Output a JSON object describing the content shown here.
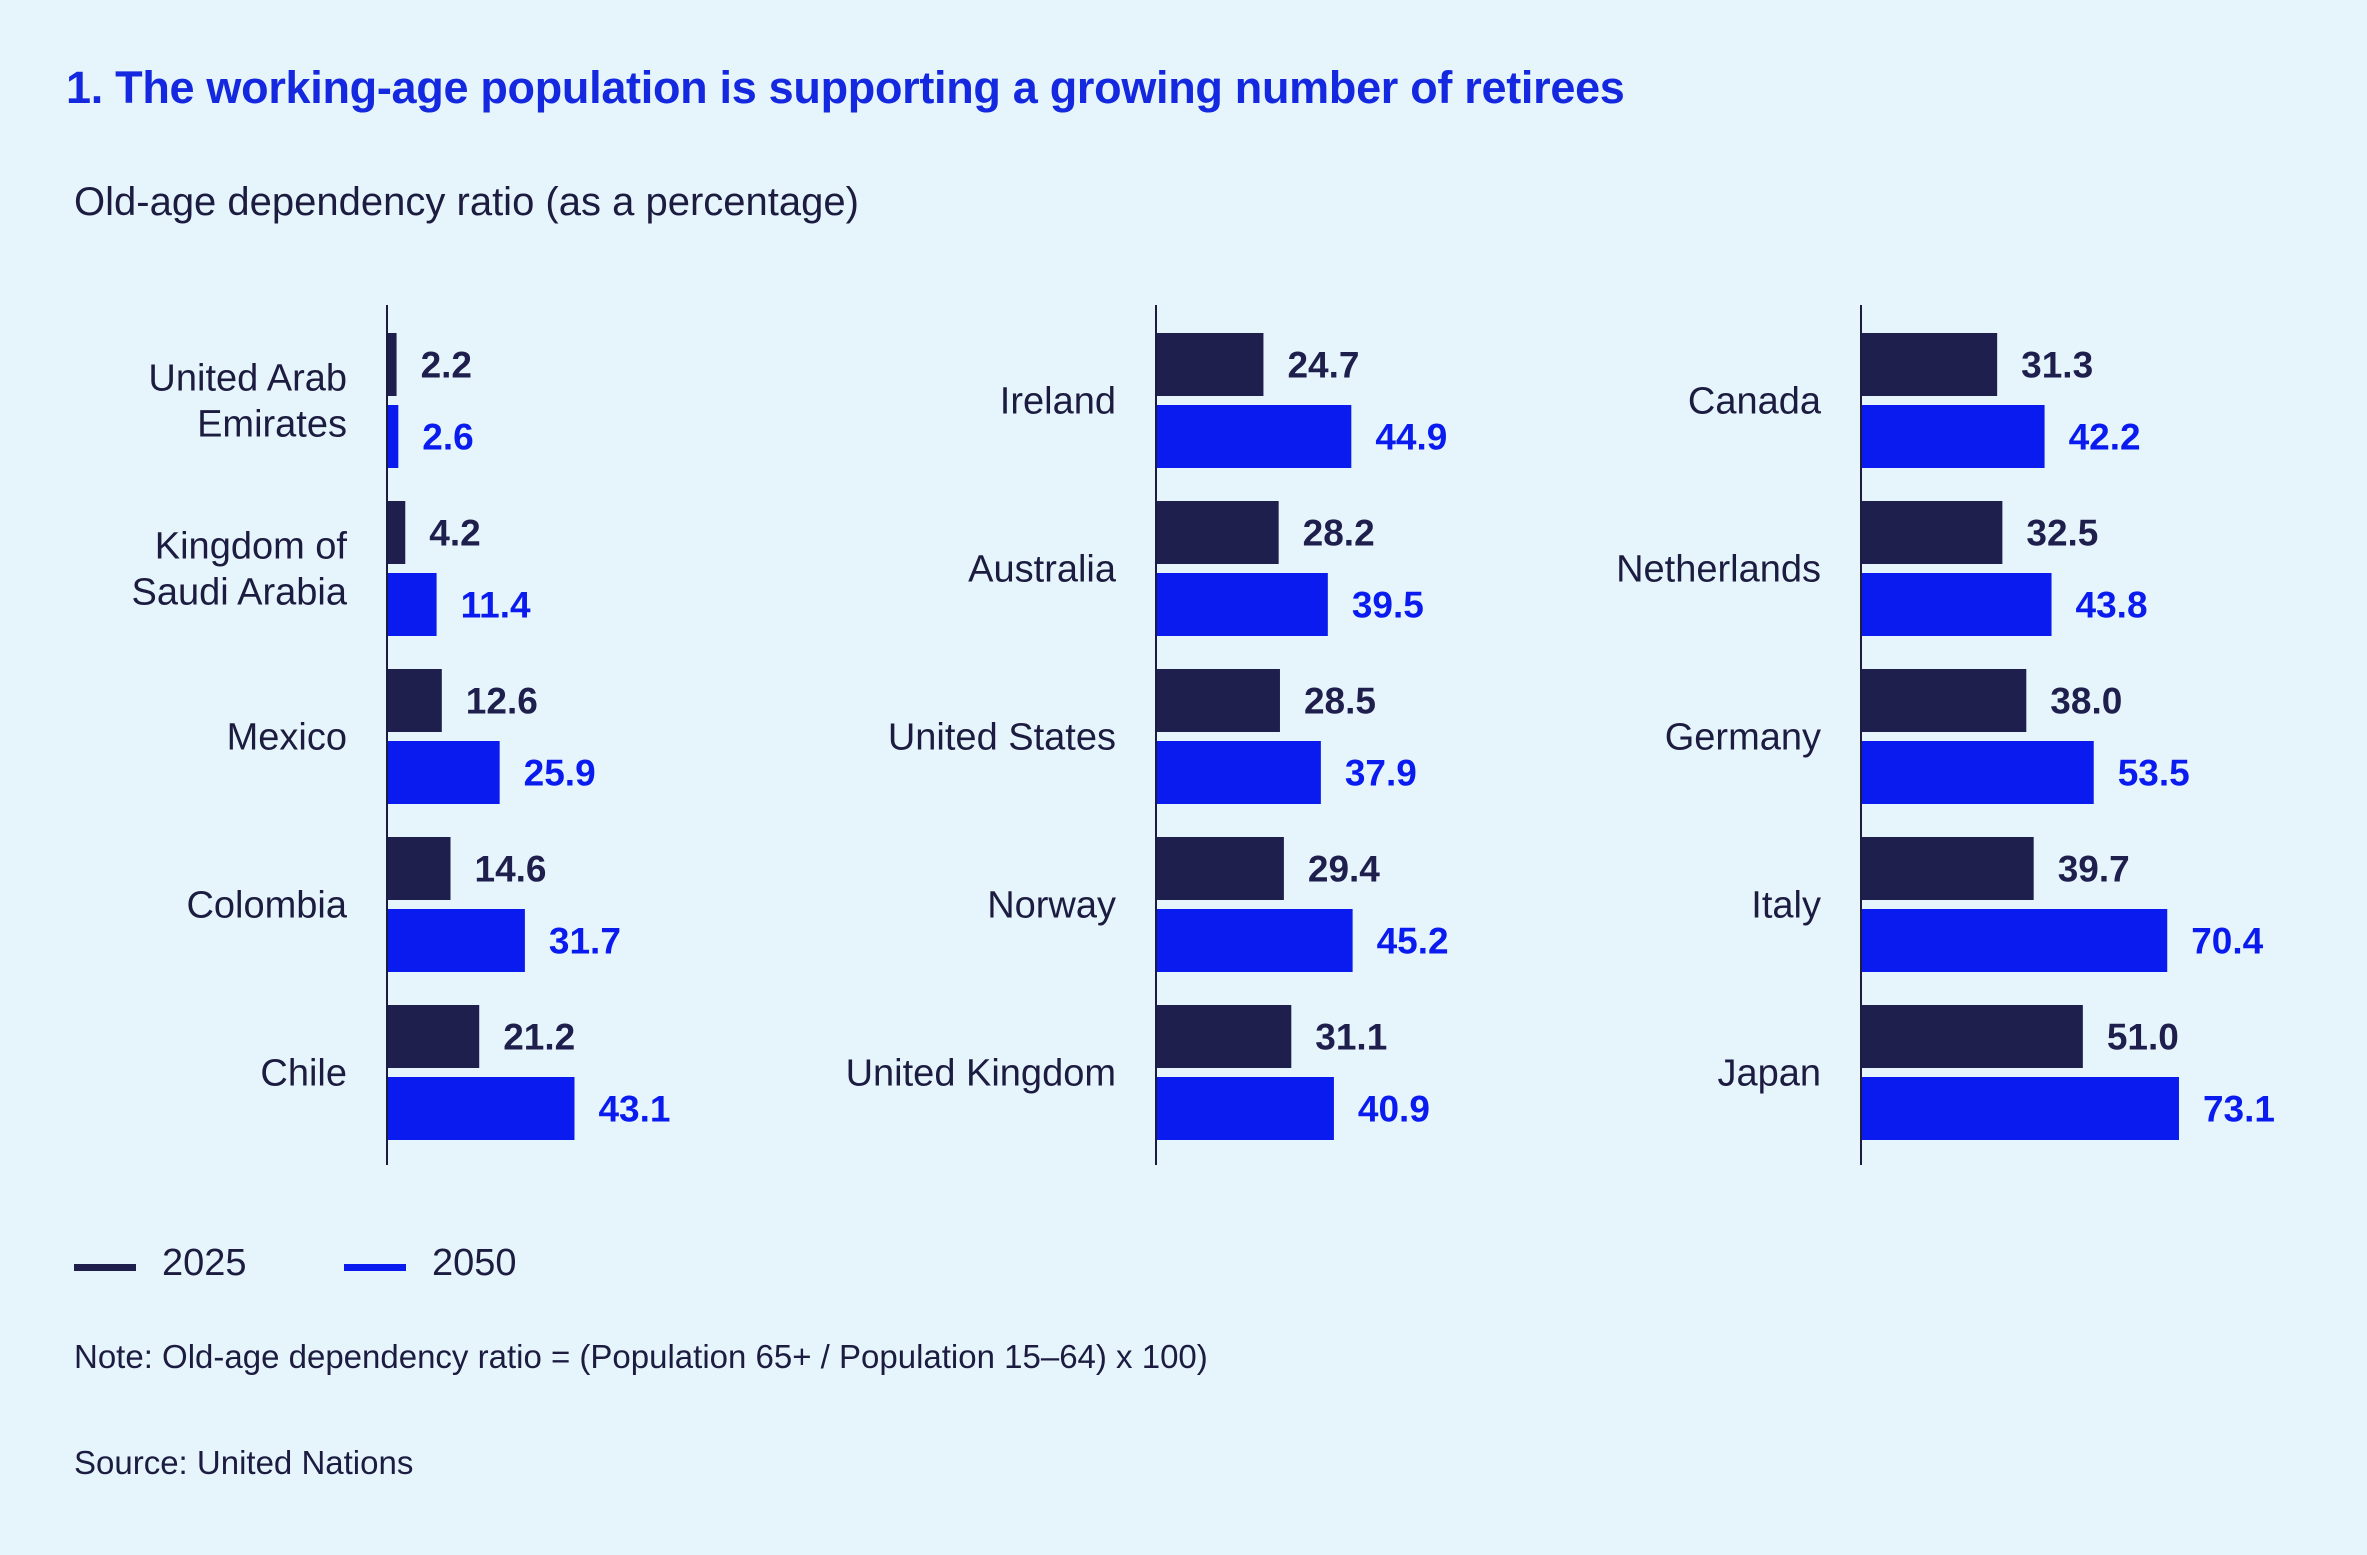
{
  "header": {
    "title": "1.  The working-age population is supporting a growing number of retirees",
    "subtitle": "Old-age dependency ratio (as a percentage)"
  },
  "legend": {
    "item_2025": "2025",
    "item_2050": "2050"
  },
  "footer": {
    "note": "Note: Old-age dependency ratio = (Population 65+ / Population 15–64) x 100)",
    "source": "Source: United Nations"
  },
  "colors": {
    "dark": "#1f1f4e",
    "blue": "#0a1bf0",
    "title": "#1428e0",
    "text": "#1c1c40"
  },
  "chart_data": {
    "type": "bar",
    "orientation": "horizontal",
    "title": "The working-age population is supporting a growing number of retirees",
    "xlabel": "Old-age dependency ratio (as a percentage)",
    "series_names": [
      "2025",
      "2050"
    ],
    "panels": [
      {
        "categories": [
          [
            "United Arab",
            "Emirates"
          ],
          [
            "Kingdom of",
            "Saudi Arabia"
          ],
          [
            "Mexico"
          ],
          [
            "Colombia"
          ],
          [
            "Chile"
          ]
        ],
        "series": [
          {
            "name": "2025",
            "values": [
              2.2,
              4.2,
              12.6,
              14.6,
              21.2
            ]
          },
          {
            "name": "2050",
            "values": [
              2.6,
              11.4,
              25.9,
              31.7,
              43.1
            ]
          }
        ]
      },
      {
        "categories": [
          [
            "Ireland"
          ],
          [
            "Australia"
          ],
          [
            "United States"
          ],
          [
            "Norway"
          ],
          [
            "United Kingdom"
          ]
        ],
        "series": [
          {
            "name": "2025",
            "values": [
              24.7,
              28.2,
              28.5,
              29.4,
              31.1
            ]
          },
          {
            "name": "2050",
            "values": [
              44.9,
              39.5,
              37.9,
              45.2,
              40.9
            ]
          }
        ]
      },
      {
        "categories": [
          [
            "Canada"
          ],
          [
            "Netherlands"
          ],
          [
            "Germany"
          ],
          [
            "Italy"
          ],
          [
            "Japan"
          ]
        ],
        "series": [
          {
            "name": "2025",
            "values": [
              31.3,
              32.5,
              38.0,
              39.7,
              51.0
            ]
          },
          {
            "name": "2050",
            "values": [
              42.2,
              43.8,
              53.5,
              70.4,
              73.1
            ]
          }
        ]
      }
    ]
  }
}
